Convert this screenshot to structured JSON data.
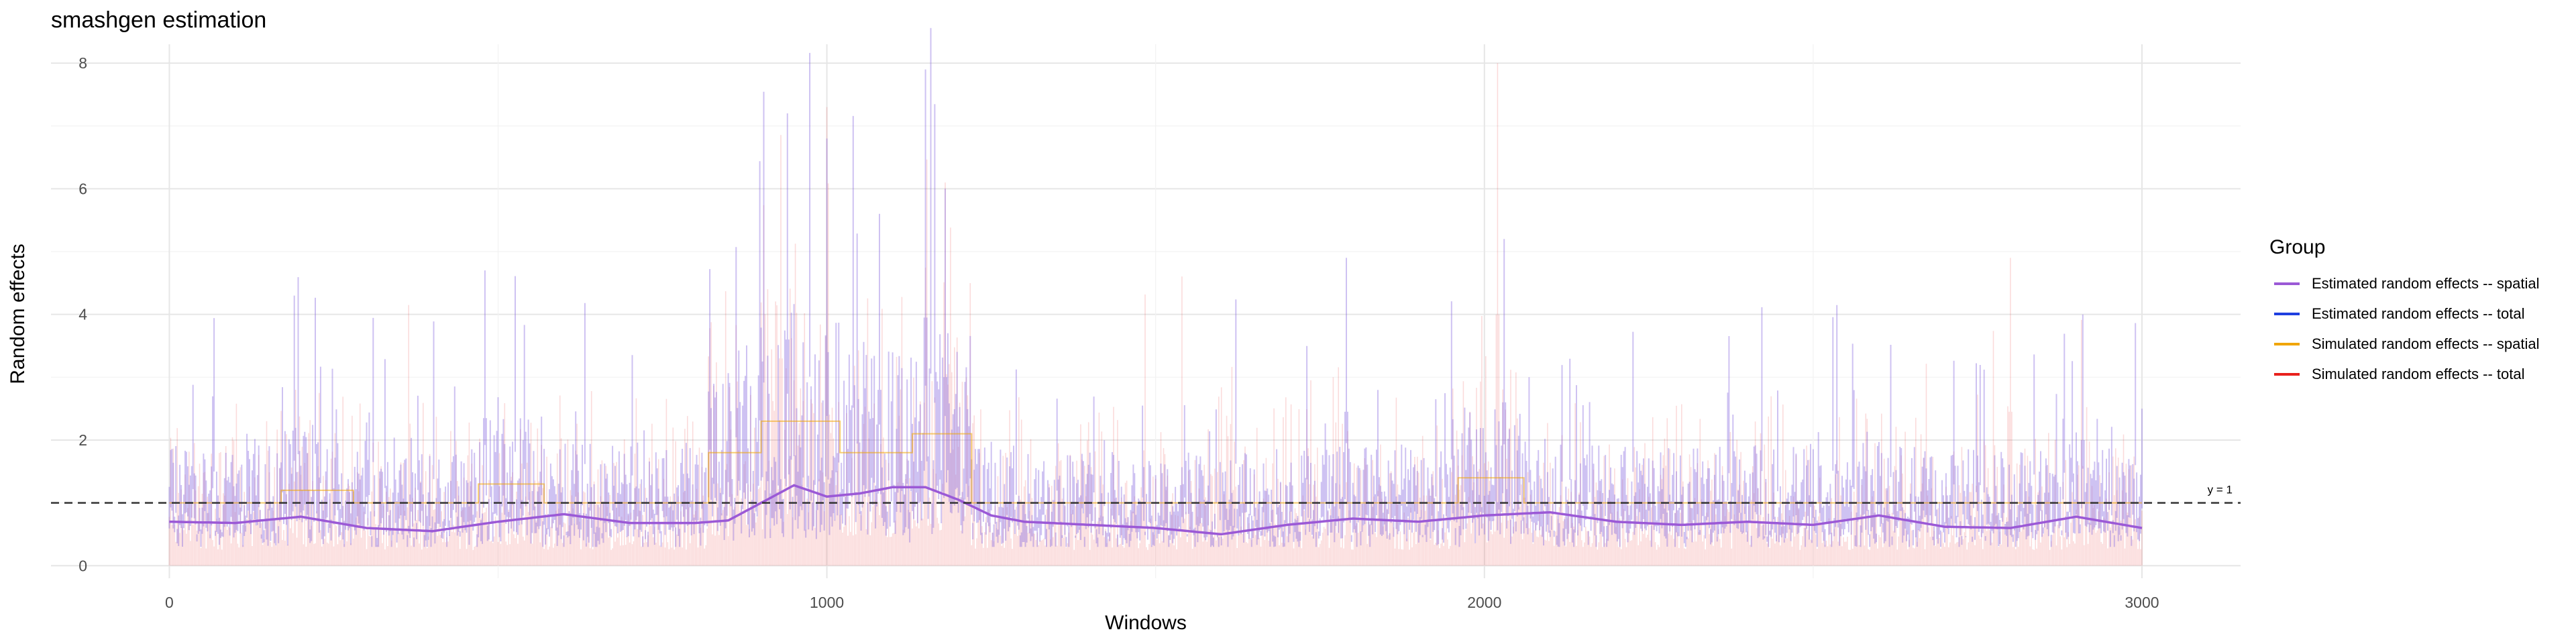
{
  "chart_data": {
    "type": "line",
    "title": "smashgen estimation",
    "xlabel": "Windows",
    "ylabel": "Random effects",
    "xlim": [
      -180,
      3150
    ],
    "ylim": [
      -0.2,
      8.3
    ],
    "x_ticks": [
      0,
      1000,
      2000,
      3000
    ],
    "y_ticks": [
      0,
      2,
      4,
      6,
      8
    ],
    "grid": true,
    "reference_line": {
      "y": 1,
      "label": "y = 1",
      "style": "dashed",
      "color": "#333333"
    },
    "legend": {
      "title": "Group",
      "position": "right",
      "entries": [
        {
          "label": "Estimated random effects -- spatial",
          "color": "#9b59d6"
        },
        {
          "label": "Estimated random effects -- total",
          "color": "#1f3fe0"
        },
        {
          "label": "Simulated random effects -- spatial",
          "color": "#f0a500"
        },
        {
          "label": "Simulated random effects -- total",
          "color": "#e8211d"
        }
      ]
    },
    "series": [
      {
        "name": "Estimated random effects -- spatial",
        "color": "#9b59d6",
        "x": [
          0,
          100,
          200,
          300,
          400,
          500,
          600,
          700,
          800,
          850,
          900,
          950,
          1000,
          1050,
          1100,
          1150,
          1200,
          1250,
          1300,
          1400,
          1500,
          1600,
          1700,
          1800,
          1900,
          2000,
          2100,
          2200,
          2300,
          2400,
          2500,
          2600,
          2700,
          2800,
          2900,
          3000
        ],
        "y": [
          0.7,
          0.68,
          0.78,
          0.6,
          0.55,
          0.7,
          0.82,
          0.68,
          0.68,
          0.72,
          1.0,
          1.28,
          1.1,
          1.15,
          1.25,
          1.25,
          1.05,
          0.8,
          0.7,
          0.65,
          0.6,
          0.5,
          0.65,
          0.75,
          0.7,
          0.8,
          0.85,
          0.7,
          0.65,
          0.7,
          0.65,
          0.8,
          0.62,
          0.6,
          0.78,
          0.6
        ]
      },
      {
        "name": "Estimated random effects -- total",
        "color": "#1f3fe0",
        "values_summary": "noisy per-window estimates, mostly 0.3-2.5 with peaks up to 7.9 near windows 900-1200",
        "peaks": [
          {
            "x": 190,
            "y": 4.3
          },
          {
            "x": 480,
            "y": 4.7
          },
          {
            "x": 940,
            "y": 7.2
          },
          {
            "x": 1000,
            "y": 6.8
          },
          {
            "x": 1080,
            "y": 5.6
          },
          {
            "x": 1150,
            "y": 7.9
          },
          {
            "x": 1180,
            "y": 6.0
          },
          {
            "x": 1790,
            "y": 4.9
          },
          {
            "x": 2030,
            "y": 5.2
          },
          {
            "x": 2910,
            "y": 4.0
          }
        ]
      },
      {
        "name": "Simulated random effects -- spatial",
        "color": "#f0a500",
        "steps": [
          {
            "x0": 0,
            "x1": 170,
            "y": 1.0
          },
          {
            "x0": 170,
            "x1": 280,
            "y": 1.2
          },
          {
            "x0": 280,
            "x1": 470,
            "y": 1.0
          },
          {
            "x0": 470,
            "x1": 570,
            "y": 1.3
          },
          {
            "x0": 570,
            "x1": 820,
            "y": 1.0
          },
          {
            "x0": 820,
            "x1": 900,
            "y": 1.8
          },
          {
            "x0": 900,
            "x1": 1020,
            "y": 2.3
          },
          {
            "x0": 1020,
            "x1": 1130,
            "y": 1.8
          },
          {
            "x0": 1130,
            "x1": 1220,
            "y": 2.1
          },
          {
            "x0": 1220,
            "x1": 1960,
            "y": 1.0
          },
          {
            "x0": 1960,
            "x1": 2060,
            "y": 1.4
          },
          {
            "x0": 2060,
            "x1": 3000,
            "y": 1.0
          }
        ]
      },
      {
        "name": "Simulated random effects -- total",
        "color": "#e8211d",
        "values_summary": "noisy per-window simulated values, mostly 0-3 with peaks near 7.3 around window 1000",
        "peaks": [
          {
            "x": 930,
            "y": 6.6
          },
          {
            "x": 1000,
            "y": 7.3
          },
          {
            "x": 1180,
            "y": 6.1
          },
          {
            "x": 2020,
            "y": 8.0
          },
          {
            "x": 2800,
            "y": 4.9
          }
        ]
      }
    ]
  }
}
